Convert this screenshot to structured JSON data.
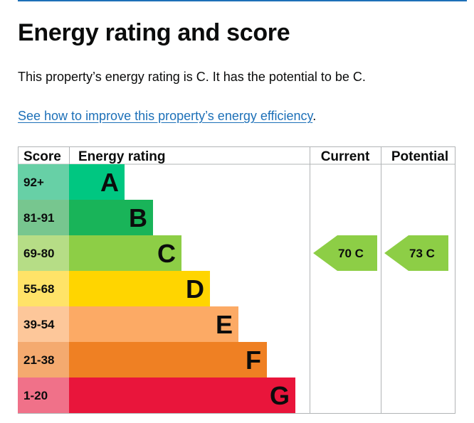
{
  "heading": "Energy rating and score",
  "summary": "This property’s energy rating is C. It has the potential to be C.",
  "improve_link": "See how to improve this property’s energy efficiency",
  "improve_suffix": ".",
  "chart_data": {
    "type": "table",
    "headers": {
      "score": "Score",
      "rating": "Energy rating",
      "current": "Current",
      "potential": "Potential"
    },
    "bands": [
      {
        "score": "92+",
        "letter": "A",
        "color": "#00c781",
        "score_bg": "#67d0a6"
      },
      {
        "score": "81-91",
        "letter": "B",
        "color": "#19b459",
        "score_bg": "#77c68f"
      },
      {
        "score": "69-80",
        "letter": "C",
        "color": "#8dce46",
        "score_bg": "#b6dd86"
      },
      {
        "score": "55-68",
        "letter": "D",
        "color": "#ffd500",
        "score_bg": "#ffe368"
      },
      {
        "score": "39-54",
        "letter": "E",
        "color": "#fcaa65",
        "score_bg": "#fdc79a"
      },
      {
        "score": "21-38",
        "letter": "F",
        "color": "#ef8023",
        "score_bg": "#f4aa6f"
      },
      {
        "score": "1-20",
        "letter": "G",
        "color": "#e9153b",
        "score_bg": "#f07189"
      }
    ],
    "current": {
      "value": 70,
      "letter": "C",
      "color": "#8dce46"
    },
    "potential": {
      "value": 73,
      "letter": "C",
      "color": "#8dce46"
    }
  }
}
